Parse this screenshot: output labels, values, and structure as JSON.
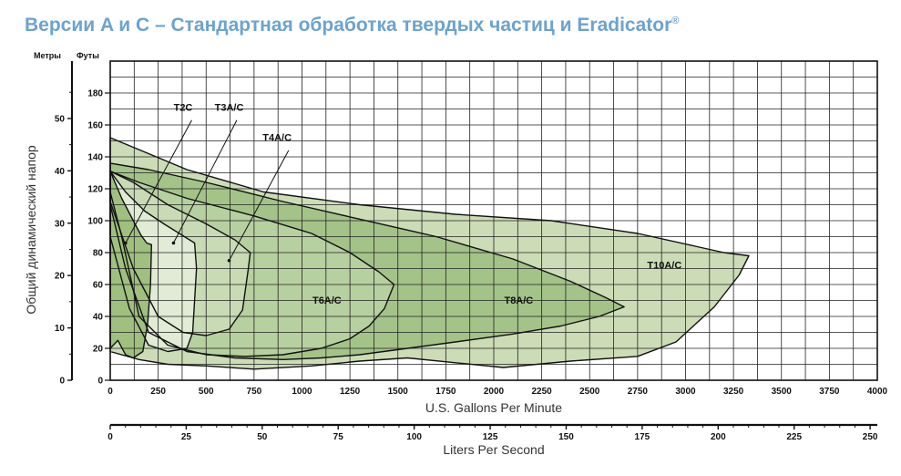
{
  "chart_data": {
    "type": "area",
    "title": "Версии A и C – Стандартная обработка твердых частиц и Eradicator",
    "title_mark": "®",
    "y_label": "Общий динамический напор",
    "y_left_unit": "Метры",
    "y_right_unit": "Футы",
    "x_label": "U.S. Gallons Per Minute",
    "x2_label": "Liters Per Second",
    "x_ticks": [
      0,
      250,
      500,
      750,
      1000,
      1250,
      1500,
      1750,
      2000,
      2250,
      2500,
      2750,
      3000,
      3250,
      3500,
      3750,
      4000
    ],
    "x_lim": [
      0,
      4000
    ],
    "y_feet_ticks": [
      0,
      20,
      40,
      60,
      80,
      100,
      120,
      140,
      160,
      180
    ],
    "y_lim_feet": [
      0,
      200
    ],
    "y_meter_ticks": [
      0,
      10,
      20,
      30,
      40,
      50
    ],
    "lps_ticks": [
      0,
      25,
      50,
      75,
      100,
      125,
      150,
      175,
      200,
      225,
      250
    ],
    "grid": true,
    "colors": {
      "t10": "#ccdcb6",
      "t8": "#a4c389",
      "t6": "#b7d09f",
      "t4": "#c8dbb4",
      "t3": "#e1ebd5",
      "t2": "#9fc07e",
      "outline": "#111111",
      "title": "#6ba3d0"
    },
    "series": [
      {
        "name": "T10A/C",
        "label_at": [
          2890,
          70
        ],
        "polygon": [
          [
            0,
            152
          ],
          [
            120,
            146
          ],
          [
            400,
            132
          ],
          [
            800,
            118
          ],
          [
            1300,
            110
          ],
          [
            1800,
            104
          ],
          [
            2300,
            100
          ],
          [
            2750,
            92
          ],
          [
            3050,
            84
          ],
          [
            3200,
            80
          ],
          [
            3330,
            78
          ],
          [
            3280,
            66
          ],
          [
            3150,
            46
          ],
          [
            2950,
            24
          ],
          [
            2750,
            15
          ],
          [
            2400,
            12
          ],
          [
            2050,
            8
          ],
          [
            1800,
            11
          ],
          [
            1550,
            14
          ],
          [
            1300,
            12
          ],
          [
            1050,
            9
          ],
          [
            750,
            7
          ],
          [
            500,
            9
          ],
          [
            300,
            10
          ],
          [
            150,
            13
          ],
          [
            0,
            18
          ]
        ]
      },
      {
        "name": "T8A/C",
        "label_at": [
          2130,
          48
        ],
        "polygon": [
          [
            0,
            136
          ],
          [
            200,
            132
          ],
          [
            500,
            124
          ],
          [
            900,
            112
          ],
          [
            1300,
            101
          ],
          [
            1700,
            90
          ],
          [
            2100,
            76
          ],
          [
            2400,
            62
          ],
          [
            2580,
            52
          ],
          [
            2680,
            46
          ],
          [
            2550,
            40
          ],
          [
            2350,
            34
          ],
          [
            2100,
            29
          ],
          [
            1800,
            24
          ],
          [
            1550,
            20
          ],
          [
            1300,
            16
          ],
          [
            1100,
            14
          ],
          [
            900,
            13
          ],
          [
            650,
            14
          ],
          [
            400,
            18
          ],
          [
            200,
            30
          ],
          [
            80,
            70
          ],
          [
            0,
            110
          ]
        ]
      },
      {
        "name": "T6A/C",
        "label_at": [
          1130,
          48
        ],
        "polygon": [
          [
            0,
            131
          ],
          [
            150,
            124
          ],
          [
            400,
            114
          ],
          [
            750,
            103
          ],
          [
            1050,
            92
          ],
          [
            1250,
            80
          ],
          [
            1400,
            68
          ],
          [
            1480,
            60
          ],
          [
            1430,
            45
          ],
          [
            1350,
            34
          ],
          [
            1250,
            26
          ],
          [
            1100,
            20
          ],
          [
            900,
            16
          ],
          [
            700,
            15
          ],
          [
            500,
            16
          ],
          [
            300,
            22
          ],
          [
            150,
            40
          ],
          [
            60,
            90
          ],
          [
            0,
            118
          ]
        ]
      },
      {
        "name": "T4A/C",
        "label_at": [
          870,
          150
        ],
        "polygon": [
          [
            0,
            131
          ],
          [
            120,
            124
          ],
          [
            300,
            110
          ],
          [
            500,
            98
          ],
          [
            650,
            88
          ],
          [
            730,
            80
          ],
          [
            720,
            70
          ],
          [
            690,
            44
          ],
          [
            620,
            32
          ],
          [
            500,
            28
          ],
          [
            380,
            30
          ],
          [
            250,
            40
          ],
          [
            120,
            70
          ],
          [
            0,
            112
          ]
        ]
      },
      {
        "name": "T3A/C",
        "label_at": [
          620,
          169
        ],
        "polygon": [
          [
            0,
            131
          ],
          [
            80,
            118
          ],
          [
            180,
            106
          ],
          [
            280,
            98
          ],
          [
            360,
            92
          ],
          [
            440,
            86
          ],
          [
            450,
            70
          ],
          [
            430,
            30
          ],
          [
            400,
            20
          ],
          [
            300,
            18
          ],
          [
            200,
            22
          ],
          [
            100,
            45
          ],
          [
            0,
            90
          ]
        ]
      },
      {
        "name": "T2C",
        "label_at": [
          380,
          169
        ],
        "polygon": [
          [
            0,
            131
          ],
          [
            60,
            114
          ],
          [
            120,
            100
          ],
          [
            160,
            91
          ],
          [
            190,
            86
          ],
          [
            215,
            85
          ],
          [
            210,
            60
          ],
          [
            195,
            35
          ],
          [
            170,
            18
          ],
          [
            120,
            14
          ],
          [
            80,
            16
          ],
          [
            40,
            25
          ],
          [
            0,
            20
          ]
        ]
      }
    ],
    "leaders": [
      {
        "name": "T2C",
        "from": [
          425,
          163
        ],
        "to": [
          80,
          86
        ]
      },
      {
        "name": "T3A/C",
        "from": [
          660,
          163
        ],
        "to": [
          330,
          86
        ]
      },
      {
        "name": "T4A/C",
        "from": [
          930,
          144
        ],
        "to": [
          620,
          75
        ]
      }
    ]
  }
}
